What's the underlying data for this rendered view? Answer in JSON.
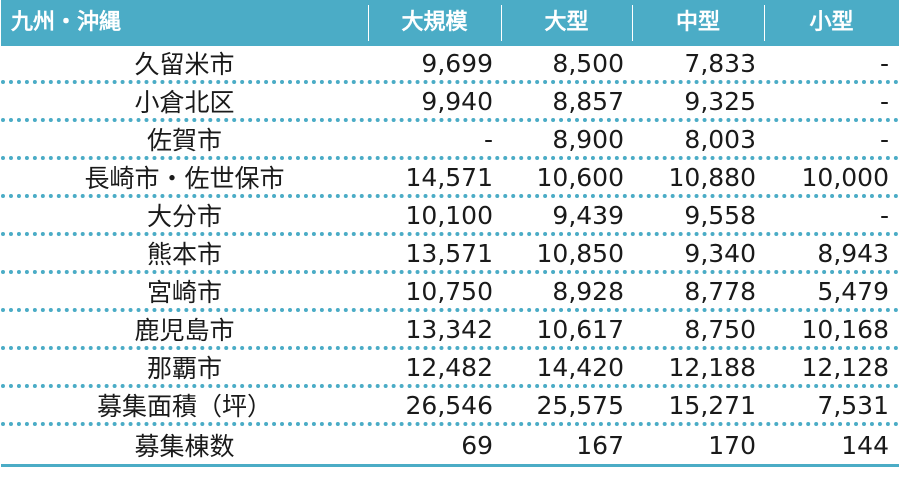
{
  "header": {
    "region": "九州・沖縄",
    "col1": "大規模",
    "col2": "大型",
    "col3": "中型",
    "col4": "小型"
  },
  "rows": [
    {
      "name": "久留米市",
      "c1": "9,699",
      "c2": "8,500",
      "c3": "7,833",
      "c4": "-"
    },
    {
      "name": "小倉北区",
      "c1": "9,940",
      "c2": "8,857",
      "c3": "9,325",
      "c4": "-"
    },
    {
      "name": "佐賀市",
      "c1": "-",
      "c2": "8,900",
      "c3": "8,003",
      "c4": "-"
    },
    {
      "name": "長崎市・佐世保市",
      "c1": "14,571",
      "c2": "10,600",
      "c3": "10,880",
      "c4": "10,000"
    },
    {
      "name": "大分市",
      "c1": "10,100",
      "c2": "9,439",
      "c3": "9,558",
      "c4": "-"
    },
    {
      "name": "熊本市",
      "c1": "13,571",
      "c2": "10,850",
      "c3": "9,340",
      "c4": "8,943"
    },
    {
      "name": "宮崎市",
      "c1": "10,750",
      "c2": "8,928",
      "c3": "8,778",
      "c4": "5,479"
    },
    {
      "name": "鹿児島市",
      "c1": "13,342",
      "c2": "10,617",
      "c3": "8,750",
      "c4": "10,168"
    },
    {
      "name": "那覇市",
      "c1": "12,482",
      "c2": "14,420",
      "c3": "12,188",
      "c4": "12,128"
    },
    {
      "name": "募集面積（坪）",
      "c1": "26,546",
      "c2": "25,575",
      "c3": "15,271",
      "c4": "7,531"
    },
    {
      "name": "募集棟数",
      "c1": "69",
      "c2": "167",
      "c3": "170",
      "c4": "144"
    }
  ]
}
